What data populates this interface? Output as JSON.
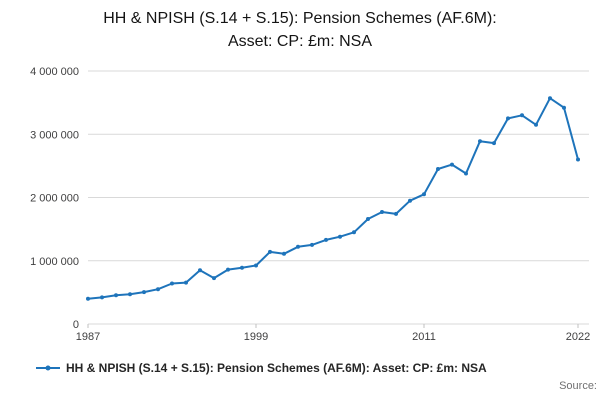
{
  "title": {
    "line1": "HH & NPISH (S.14 + S.15): Pension Schemes (AF.6M):",
    "line2": "Asset: CP: £m: NSA"
  },
  "legend": {
    "label": "HH & NPISH (S.14 + S.15): Pension Schemes (AF.6M): Asset: CP: £m: NSA"
  },
  "footer": {
    "source_label": "Source:"
  },
  "colors": {
    "line": "#1e74bb",
    "grid": "#d9d9d9",
    "axis": "#c0c0c0",
    "tick_text": "#404041"
  },
  "chart_data": {
    "type": "line",
    "title": "HH & NPISH (S.14 + S.15): Pension Schemes (AF.6M): Asset: CP: £m: NSA",
    "xlabel": "",
    "ylabel": "",
    "grid": true,
    "legend_position": "bottom-left",
    "ylim": [
      0,
      4000000
    ],
    "ytick_values": [
      0,
      1000000,
      2000000,
      3000000,
      4000000
    ],
    "ytick_labels": [
      "0",
      "1 000 000",
      "2 000 000",
      "3 000 000",
      "4 000 000"
    ],
    "xtick_values": [
      1987,
      1999,
      2011,
      2022
    ],
    "xtick_labels": [
      "1987",
      "1999",
      "2011",
      "2022"
    ],
    "x": [
      1987,
      1988,
      1989,
      1990,
      1991,
      1992,
      1993,
      1994,
      1995,
      1996,
      1997,
      1998,
      1999,
      2000,
      2001,
      2002,
      2003,
      2004,
      2005,
      2006,
      2007,
      2008,
      2009,
      2010,
      2011,
      2012,
      2013,
      2014,
      2015,
      2016,
      2017,
      2018,
      2019,
      2020,
      2021,
      2022
    ],
    "series": [
      {
        "name": "HH & NPISH (S.14 + S.15): Pension Schemes (AF.6M): Asset: CP: £m: NSA",
        "values": [
          400000,
          420000,
          455000,
          470000,
          505000,
          550000,
          640000,
          655000,
          850000,
          725000,
          860000,
          890000,
          925000,
          1140000,
          1110000,
          1220000,
          1250000,
          1330000,
          1380000,
          1450000,
          1660000,
          1770000,
          1740000,
          1950000,
          2050000,
          2450000,
          2520000,
          2380000,
          2890000,
          2860000,
          3250000,
          3300000,
          3150000,
          3570000,
          3420000,
          2600000
        ]
      }
    ]
  }
}
